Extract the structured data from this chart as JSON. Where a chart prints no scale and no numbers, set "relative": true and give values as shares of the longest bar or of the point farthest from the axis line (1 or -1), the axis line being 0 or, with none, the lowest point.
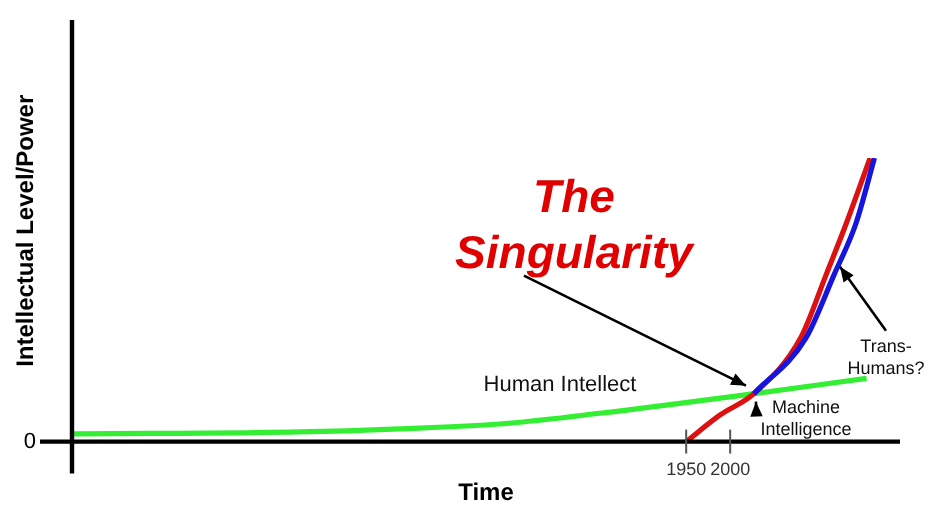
{
  "chart_data": {
    "type": "line",
    "relative": true,
    "xlabel": "Time",
    "ylabel": "Intellectual Level/Power",
    "xlim": [
      1252,
      2193
    ],
    "xticks": [
      1950,
      2000
    ],
    "grid": false,
    "legend": false,
    "marker": "none",
    "line_style": "solid",
    "series": [
      {
        "name": "Human Intellect",
        "color": "#33ee33",
        "x": [
          1252,
          1511,
          1625,
          1738,
          1852,
          2027,
          2155
        ],
        "values": [
          0.027,
          0.034,
          0.045,
          0.062,
          0.1,
          0.169,
          0.223
        ]
      },
      {
        "name": "Machine Intelligence",
        "color": "#dd1111",
        "x": [
          1950,
          1989,
          2027,
          2080,
          2109,
          2132,
          2159
        ],
        "values": [
          0,
          0.095,
          0.169,
          0.365,
          0.588,
          0.77,
          1
        ]
      },
      {
        "name": "Trans-Humans?",
        "color": "#1515dd",
        "x": [
          2027,
          2086,
          2118,
          2143,
          2164
        ],
        "values": [
          0.169,
          0.365,
          0.588,
          0.77,
          1
        ]
      }
    ],
    "annotations": [
      {
        "text": "The Singularity",
        "x": 2027,
        "y": 0.169
      },
      "0"
    ]
  }
}
